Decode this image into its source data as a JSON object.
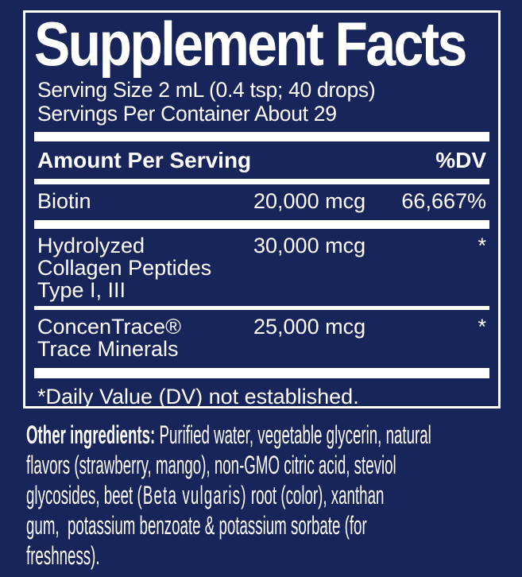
{
  "colors": {
    "background_navy": "#17255a",
    "panel_border": "#ffffff",
    "text": "#ffffff",
    "separator": "#ffffff"
  },
  "panel": {
    "title": "Supplement Facts",
    "serving_size": "Serving Size 2 mL (0.4 tsp; 40 drops)",
    "servings_per_container": "Servings Per Container About 29",
    "header": {
      "amount_label": "Amount Per Serving",
      "dv_label": "%DV"
    },
    "rows": [
      {
        "name": "Biotin",
        "amount": "20,000 mcg",
        "dv": "66,667%"
      },
      {
        "name": "Hydrolyzed\nCollagen Peptides\nType I, III",
        "amount": "30,000 mcg",
        "dv": "*"
      },
      {
        "name": "ConcenTrace®\nTrace Minerals",
        "amount": "25,000 mcg",
        "dv": "*"
      }
    ],
    "footnote": "*Daily Value (DV) not established."
  },
  "other_ingredients": {
    "label": "Other ingredients:",
    "text_before": " Purified water, vegetable glycerin, natural\nflavors (strawberry, mango), non-GMO citric acid, steviol\nglycosides, beet ",
    "botanical": "(Beta vulgaris)",
    "text_after": " root (color), xanthan\ngum,  potassium benzoate & potassium sorbate (for\nfreshness)."
  }
}
